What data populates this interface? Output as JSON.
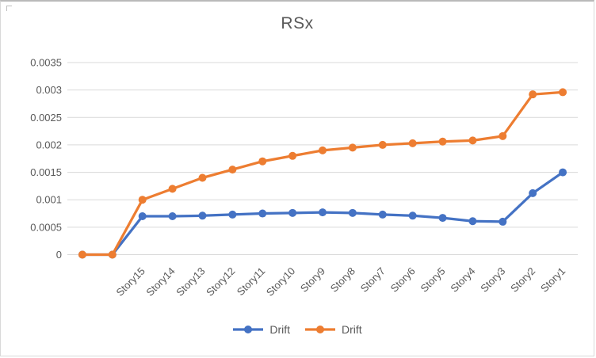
{
  "chart_data": {
    "type": "line",
    "title": "RSx",
    "categories": [
      "",
      "",
      "Story15",
      "Story14",
      "Story13",
      "Story12",
      "Story11",
      "Story10",
      "Story9",
      "Story8",
      "Story7",
      "Story6",
      "Story5",
      "Story4",
      "Story3",
      "Story2",
      "Story1"
    ],
    "series": [
      {
        "name": "Drift",
        "color": "#4472C4",
        "marker": "circle",
        "values": [
          0,
          0,
          0.0007,
          0.0007,
          0.00071,
          0.00073,
          0.00075,
          0.00076,
          0.00077,
          0.00076,
          0.00073,
          0.00071,
          0.00067,
          0.00061,
          0.0006,
          0.00112,
          0.0015
        ]
      },
      {
        "name": "Drift",
        "color": "#ED7D31",
        "marker": "circle",
        "values": [
          0,
          0,
          0.001,
          0.0012,
          0.0014,
          0.00155,
          0.0017,
          0.0018,
          0.0019,
          0.00195,
          0.002,
          0.00203,
          0.00206,
          0.00208,
          0.00216,
          0.00292,
          0.00296
        ]
      }
    ],
    "xlabel": "",
    "ylabel": "",
    "ylim": [
      0,
      0.0035
    ],
    "ytick_step": 0.0005,
    "ytick_labels": [
      "0",
      "0.0005",
      "0.001",
      "0.0015",
      "0.002",
      "0.0025",
      "0.003",
      "0.0035"
    ],
    "grid": true,
    "legend_position": "bottom",
    "styles": {
      "gridline_color": "#d9d9d9",
      "axis_text_color": "#595959",
      "title_color": "#595959"
    }
  }
}
